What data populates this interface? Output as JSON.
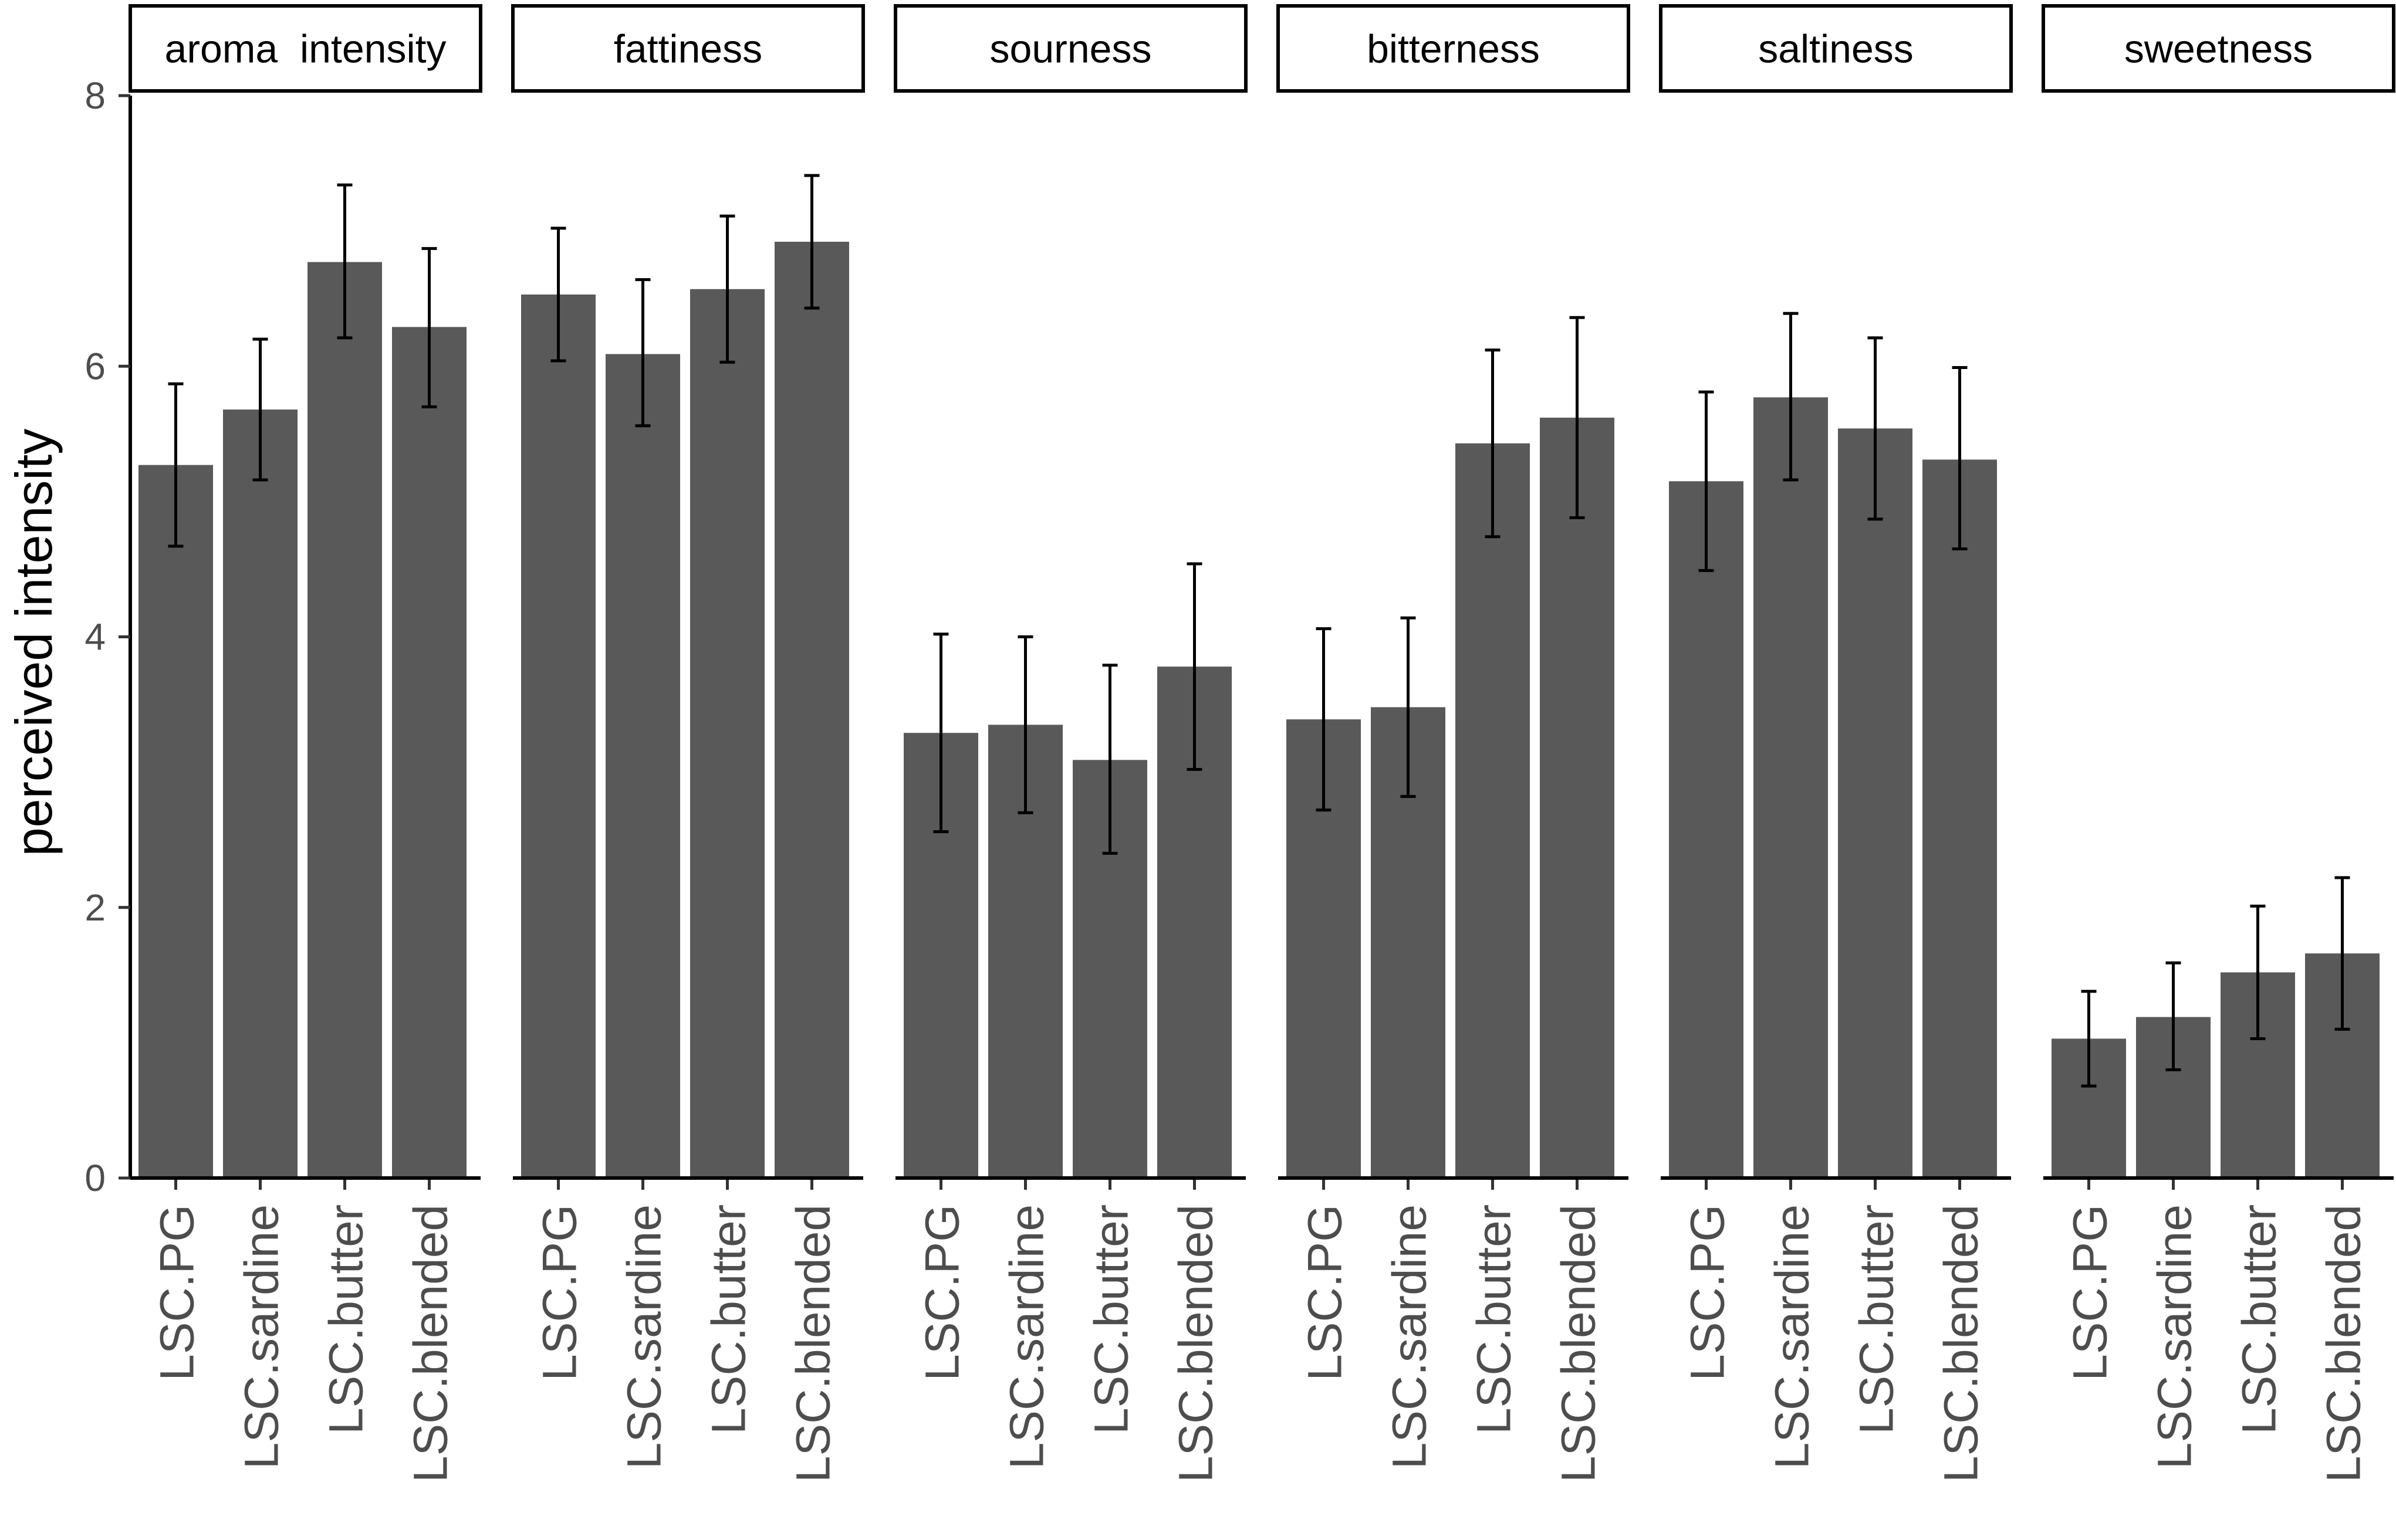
{
  "chart_data": {
    "type": "bar",
    "title": "",
    "xlabel": "",
    "ylabel": "perceived intensity",
    "ylim": [
      0,
      8
    ],
    "yticks": [
      0,
      2,
      4,
      6,
      8
    ],
    "grid": false,
    "legend": "none",
    "bar_color": "#595959",
    "categories": [
      "LSC.PG",
      "LSC.sardine",
      "LSC.butter",
      "LSC.blended"
    ],
    "facets": [
      {
        "name": "aroma  intensity",
        "values": [
          5.27,
          5.68,
          6.77,
          6.29
        ],
        "err_low": [
          4.67,
          5.16,
          6.21,
          5.7
        ],
        "err_high": [
          5.87,
          6.2,
          7.34,
          6.87
        ]
      },
      {
        "name": "fattiness",
        "values": [
          6.53,
          6.09,
          6.57,
          6.92
        ],
        "err_low": [
          6.04,
          5.56,
          6.03,
          6.43
        ],
        "err_high": [
          7.02,
          6.64,
          7.11,
          7.41
        ]
      },
      {
        "name": "sourness",
        "values": [
          3.29,
          3.35,
          3.09,
          3.78
        ],
        "err_low": [
          2.56,
          2.7,
          2.4,
          3.02
        ],
        "err_high": [
          4.02,
          4.0,
          3.79,
          4.54
        ]
      },
      {
        "name": "bitterness",
        "values": [
          3.39,
          3.48,
          5.43,
          5.62
        ],
        "err_low": [
          2.72,
          2.82,
          4.74,
          4.88
        ],
        "err_high": [
          4.06,
          4.14,
          6.12,
          6.36
        ]
      },
      {
        "name": "saltiness",
        "values": [
          5.15,
          5.77,
          5.54,
          5.31
        ],
        "err_low": [
          4.49,
          5.16,
          4.87,
          4.65
        ],
        "err_high": [
          5.81,
          6.39,
          6.21,
          5.99
        ]
      },
      {
        "name": "sweetness",
        "values": [
          1.03,
          1.19,
          1.52,
          1.66
        ],
        "err_low": [
          0.68,
          0.8,
          1.03,
          1.1
        ],
        "err_high": [
          1.38,
          1.59,
          2.01,
          2.22
        ]
      }
    ]
  }
}
